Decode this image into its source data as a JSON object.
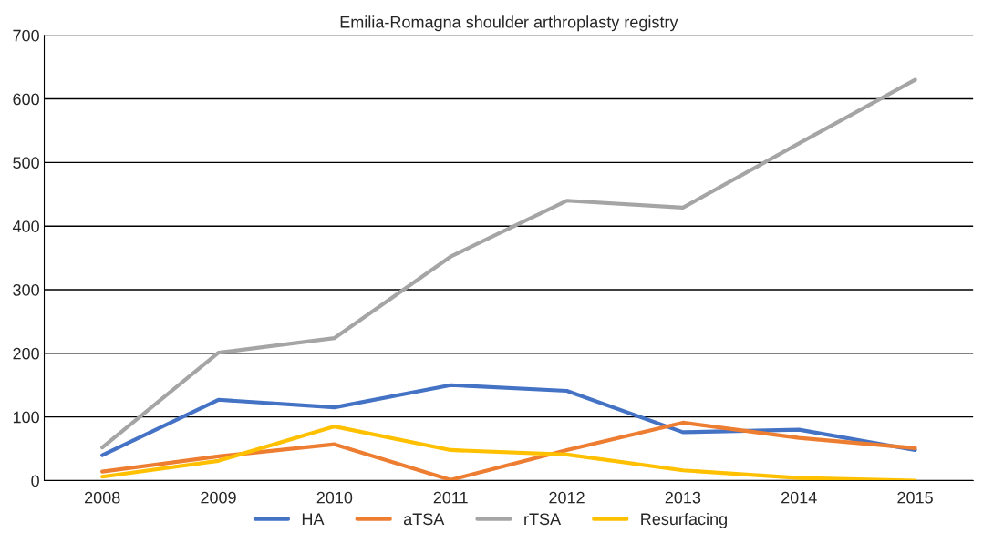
{
  "chart_data": {
    "type": "line",
    "title": "Emilia-Romagna shoulder arthroplasty registry",
    "categories": [
      "2008",
      "2009",
      "2010",
      "2011",
      "2012",
      "2013",
      "2014",
      "2015"
    ],
    "series": [
      {
        "name": "HA",
        "color": "#4472c4",
        "values": [
          40,
          127,
          115,
          150,
          141,
          76,
          80,
          48
        ]
      },
      {
        "name": "aTSA",
        "color": "#ed7d31",
        "values": [
          14,
          38,
          57,
          1,
          48,
          91,
          67,
          51
        ]
      },
      {
        "name": "rTSA",
        "color": "#a5a5a5",
        "values": [
          52,
          201,
          224,
          352,
          440,
          429,
          530,
          630
        ]
      },
      {
        "name": "Resurfacing",
        "color": "#ffc000",
        "values": [
          6,
          31,
          85,
          48,
          41,
          16,
          4,
          0
        ]
      }
    ],
    "ylim": [
      0,
      700
    ],
    "yticks": [
      0,
      100,
      200,
      300,
      400,
      500,
      600,
      700
    ],
    "grid": "y",
    "legend": "bottom",
    "marker": "none",
    "line_style": "solid"
  }
}
